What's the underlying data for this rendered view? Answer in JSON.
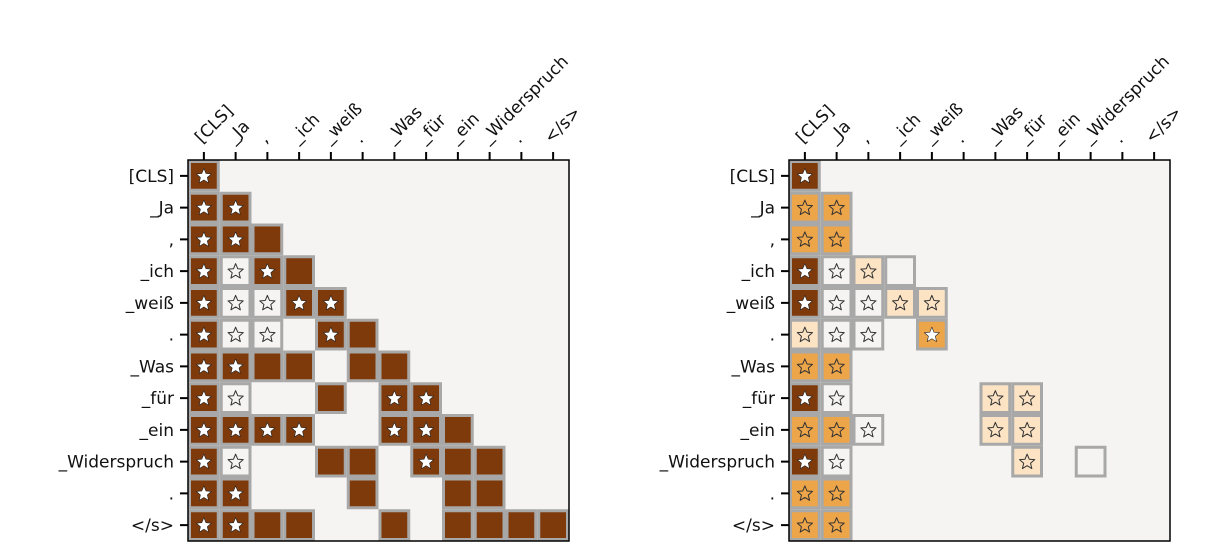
{
  "chart_data": [
    {
      "type": "heatmap",
      "title": "",
      "xlabel": "",
      "ylabel": "",
      "tokens": [
        "[CLS]",
        "_Ja",
        ",",
        "_ich",
        "_weiß",
        ".",
        "_Was",
        "_für",
        "_ein",
        "_Widerspruch",
        ".",
        "</s>"
      ],
      "legend": "none",
      "cell_legend": {
        "0": "empty",
        "1": "framed cell, no fill",
        "2": "light peach fill",
        "3": "orange fill",
        "4": "dark brown fill"
      },
      "cells": [
        [
          4,
          0,
          0,
          0,
          0,
          0,
          0,
          0,
          0,
          0,
          0,
          0
        ],
        [
          4,
          4,
          0,
          0,
          0,
          0,
          0,
          0,
          0,
          0,
          0,
          0
        ],
        [
          4,
          4,
          4,
          0,
          0,
          0,
          0,
          0,
          0,
          0,
          0,
          0
        ],
        [
          4,
          1,
          4,
          4,
          0,
          0,
          0,
          0,
          0,
          0,
          0,
          0
        ],
        [
          4,
          1,
          1,
          4,
          4,
          0,
          0,
          0,
          0,
          0,
          0,
          0
        ],
        [
          4,
          1,
          1,
          0,
          4,
          4,
          0,
          0,
          0,
          0,
          0,
          0
        ],
        [
          4,
          4,
          4,
          4,
          0,
          4,
          4,
          0,
          0,
          0,
          0,
          0
        ],
        [
          4,
          1,
          0,
          0,
          4,
          0,
          4,
          4,
          0,
          0,
          0,
          0
        ],
        [
          4,
          4,
          4,
          4,
          0,
          0,
          4,
          4,
          4,
          0,
          0,
          0
        ],
        [
          4,
          1,
          0,
          0,
          4,
          4,
          0,
          4,
          4,
          4,
          0,
          0
        ],
        [
          4,
          4,
          0,
          0,
          0,
          4,
          0,
          0,
          4,
          4,
          0,
          0
        ],
        [
          4,
          4,
          4,
          4,
          0,
          0,
          4,
          0,
          4,
          4,
          4,
          4
        ]
      ],
      "stars": [
        [
          1,
          0,
          0,
          0,
          0,
          0,
          0,
          0,
          0,
          0,
          0,
          0
        ],
        [
          1,
          1,
          0,
          0,
          0,
          0,
          0,
          0,
          0,
          0,
          0,
          0
        ],
        [
          1,
          1,
          0,
          0,
          0,
          0,
          0,
          0,
          0,
          0,
          0,
          0
        ],
        [
          1,
          2,
          1,
          0,
          0,
          0,
          0,
          0,
          0,
          0,
          0,
          0
        ],
        [
          1,
          2,
          2,
          1,
          1,
          0,
          0,
          0,
          0,
          0,
          0,
          0
        ],
        [
          1,
          2,
          2,
          0,
          1,
          0,
          0,
          0,
          0,
          0,
          0,
          0
        ],
        [
          1,
          1,
          0,
          0,
          0,
          0,
          0,
          0,
          0,
          0,
          0,
          0
        ],
        [
          1,
          2,
          0,
          0,
          0,
          0,
          1,
          1,
          0,
          0,
          0,
          0
        ],
        [
          1,
          1,
          1,
          1,
          0,
          0,
          1,
          1,
          0,
          0,
          0,
          0
        ],
        [
          1,
          2,
          0,
          0,
          0,
          0,
          0,
          1,
          0,
          0,
          0,
          0
        ],
        [
          1,
          1,
          0,
          0,
          0,
          0,
          0,
          0,
          0,
          0,
          0,
          0
        ],
        [
          1,
          1,
          0,
          0,
          0,
          0,
          0,
          0,
          0,
          0,
          0,
          0
        ]
      ]
    },
    {
      "type": "heatmap",
      "title": "",
      "xlabel": "",
      "ylabel": "",
      "tokens": [
        "[CLS]",
        "_Ja",
        ",",
        "_ich",
        "_weiß",
        ".",
        "_Was",
        "_für",
        "_ein",
        "_Widerspruch",
        ".",
        "</s>"
      ],
      "legend": "none",
      "cell_legend": {
        "0": "empty",
        "1": "framed cell, no fill",
        "2": "light peach fill",
        "3": "orange fill",
        "4": "dark brown fill"
      },
      "cells": [
        [
          4,
          0,
          0,
          0,
          0,
          0,
          0,
          0,
          0,
          0,
          0,
          0
        ],
        [
          3,
          3,
          0,
          0,
          0,
          0,
          0,
          0,
          0,
          0,
          0,
          0
        ],
        [
          3,
          3,
          0,
          0,
          0,
          0,
          0,
          0,
          0,
          0,
          0,
          0
        ],
        [
          4,
          1,
          2,
          1,
          0,
          0,
          0,
          0,
          0,
          0,
          0,
          0
        ],
        [
          4,
          1,
          1,
          2,
          2,
          0,
          0,
          0,
          0,
          0,
          0,
          0
        ],
        [
          2,
          1,
          1,
          0,
          3,
          0,
          0,
          0,
          0,
          0,
          0,
          0
        ],
        [
          3,
          3,
          0,
          0,
          0,
          0,
          0,
          0,
          0,
          0,
          0,
          0
        ],
        [
          4,
          1,
          0,
          0,
          0,
          0,
          2,
          2,
          0,
          0,
          0,
          0
        ],
        [
          3,
          3,
          1,
          0,
          0,
          0,
          2,
          2,
          0,
          0,
          0,
          0
        ],
        [
          4,
          1,
          0,
          0,
          0,
          0,
          0,
          2,
          0,
          1,
          0,
          0
        ],
        [
          3,
          3,
          0,
          0,
          0,
          0,
          0,
          0,
          0,
          0,
          0,
          0
        ],
        [
          3,
          3,
          0,
          0,
          0,
          0,
          0,
          0,
          0,
          0,
          0,
          0
        ]
      ],
      "stars": [
        [
          1,
          0,
          0,
          0,
          0,
          0,
          0,
          0,
          0,
          0,
          0,
          0
        ],
        [
          2,
          2,
          0,
          0,
          0,
          0,
          0,
          0,
          0,
          0,
          0,
          0
        ],
        [
          2,
          2,
          0,
          0,
          0,
          0,
          0,
          0,
          0,
          0,
          0,
          0
        ],
        [
          1,
          2,
          2,
          0,
          0,
          0,
          0,
          0,
          0,
          0,
          0,
          0
        ],
        [
          1,
          2,
          2,
          2,
          2,
          0,
          0,
          0,
          0,
          0,
          0,
          0
        ],
        [
          2,
          2,
          2,
          0,
          1,
          0,
          0,
          0,
          0,
          0,
          0,
          0
        ],
        [
          2,
          2,
          0,
          0,
          0,
          0,
          0,
          0,
          0,
          0,
          0,
          0
        ],
        [
          1,
          2,
          0,
          0,
          0,
          0,
          2,
          2,
          0,
          0,
          0,
          0
        ],
        [
          2,
          2,
          2,
          0,
          0,
          0,
          2,
          2,
          0,
          0,
          0,
          0
        ],
        [
          1,
          2,
          0,
          0,
          0,
          0,
          0,
          2,
          0,
          0,
          0,
          0
        ],
        [
          2,
          2,
          0,
          0,
          0,
          0,
          0,
          0,
          0,
          0,
          0,
          0
        ],
        [
          2,
          2,
          0,
          0,
          0,
          0,
          0,
          0,
          0,
          0,
          0,
          0
        ]
      ]
    }
  ],
  "colors": {
    "background": "#f5f4f2",
    "empty": "#f5f4f2",
    "level2": "#fbe3c4",
    "level3": "#eda54a",
    "level4": "#7e3a0a",
    "outline": "#a8a8a8",
    "axis": "#000000"
  },
  "star_legend": {
    "0": "no star",
    "1": "filled white star",
    "2": "hollow star"
  }
}
